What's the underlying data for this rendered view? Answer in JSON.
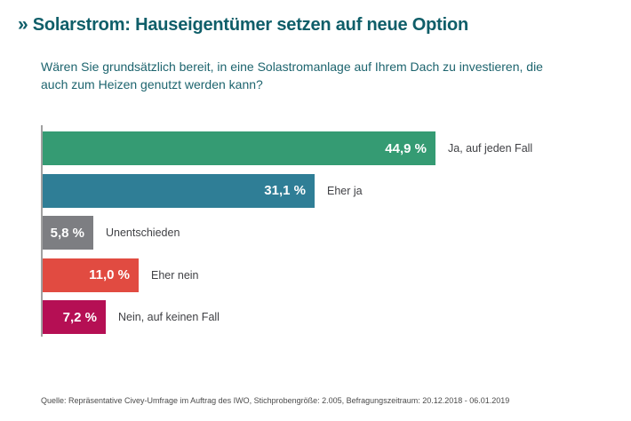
{
  "header": {
    "chevron": "»",
    "title": "Solarstrom: Hauseigentümer setzen auf neue Option"
  },
  "question": "Wären Sie grundsätzlich bereit, in eine Solastromanlage auf Ihrem Dach zu investieren, die auch zum Heizen genutzt werden kann?",
  "chart_data": {
    "type": "bar",
    "orientation": "horizontal",
    "title": "",
    "xlabel": "",
    "ylabel": "",
    "xlim": [
      0,
      45
    ],
    "grid": false,
    "legend": false,
    "unit": "%",
    "categories": [
      "Ja, auf jeden Fall",
      "Eher ja",
      "Unentschieden",
      "Eher nein",
      "Nein, auf keinen Fall"
    ],
    "values": [
      44.9,
      31.1,
      5.8,
      11.0,
      7.2
    ],
    "value_labels": [
      "44,9 %",
      "31,1 %",
      "5,8 %",
      "11,0 %",
      "7,2 %"
    ],
    "bar_colors": [
      "#359b73",
      "#2f7e96",
      "#7d7e82",
      "#e14b41",
      "#b50f54"
    ],
    "axis_color": "#a0a0a0"
  },
  "footer": {
    "source": "Quelle: Repräsentative Civey-Umfrage im Auftrag des IWO, Stichprobengröße: 2.005, Befragungszeitraum: 20.12.2018 - 06.01.2019"
  },
  "colors": {
    "title": "#0f5e69",
    "question": "#1d646e",
    "bar_value_text": "#ffffff",
    "bar_label_text": "#404145",
    "footer_text": "#4b4b4b"
  }
}
